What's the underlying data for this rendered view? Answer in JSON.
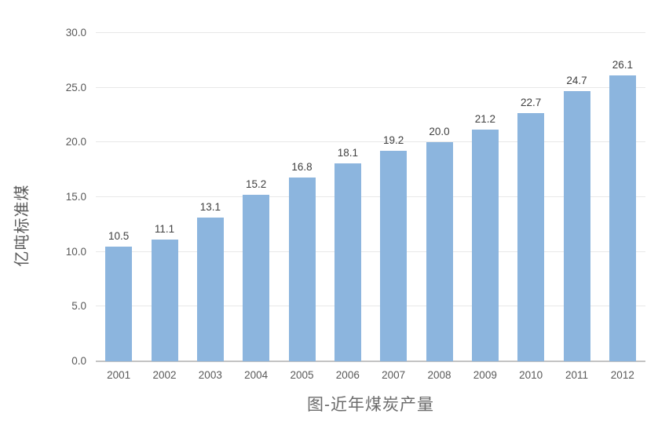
{
  "chart_data": {
    "type": "bar",
    "title": "图-近年煤炭产量",
    "xlabel": "",
    "ylabel": "亿吨标准煤",
    "categories": [
      "2001",
      "2002",
      "2003",
      "2004",
      "2005",
      "2006",
      "2007",
      "2008",
      "2009",
      "2010",
      "2011",
      "2012"
    ],
    "values": [
      10.5,
      11.1,
      13.1,
      15.2,
      16.8,
      18.1,
      19.2,
      20.0,
      21.2,
      22.7,
      24.7,
      26.1
    ],
    "data_labels": [
      "10.5",
      "11.1",
      "13.1",
      "15.2",
      "16.8",
      "18.1",
      "19.2",
      "20.0",
      "21.2",
      "22.7",
      "24.7",
      "26.1"
    ],
    "ylim": [
      0,
      30
    ],
    "ytick_step": 5,
    "ytick_labels": [
      "0.0",
      "5.0",
      "10.0",
      "15.0",
      "20.0",
      "25.0",
      "30.0"
    ],
    "grid": true,
    "legend": false,
    "colors": {
      "bar": "#8cb5de",
      "data_label": "#404040",
      "axis_text": "#595959",
      "gridline": "#e8e8e8",
      "axis_line": "#c3c3c3",
      "title_text": "#6b6b6b"
    }
  }
}
